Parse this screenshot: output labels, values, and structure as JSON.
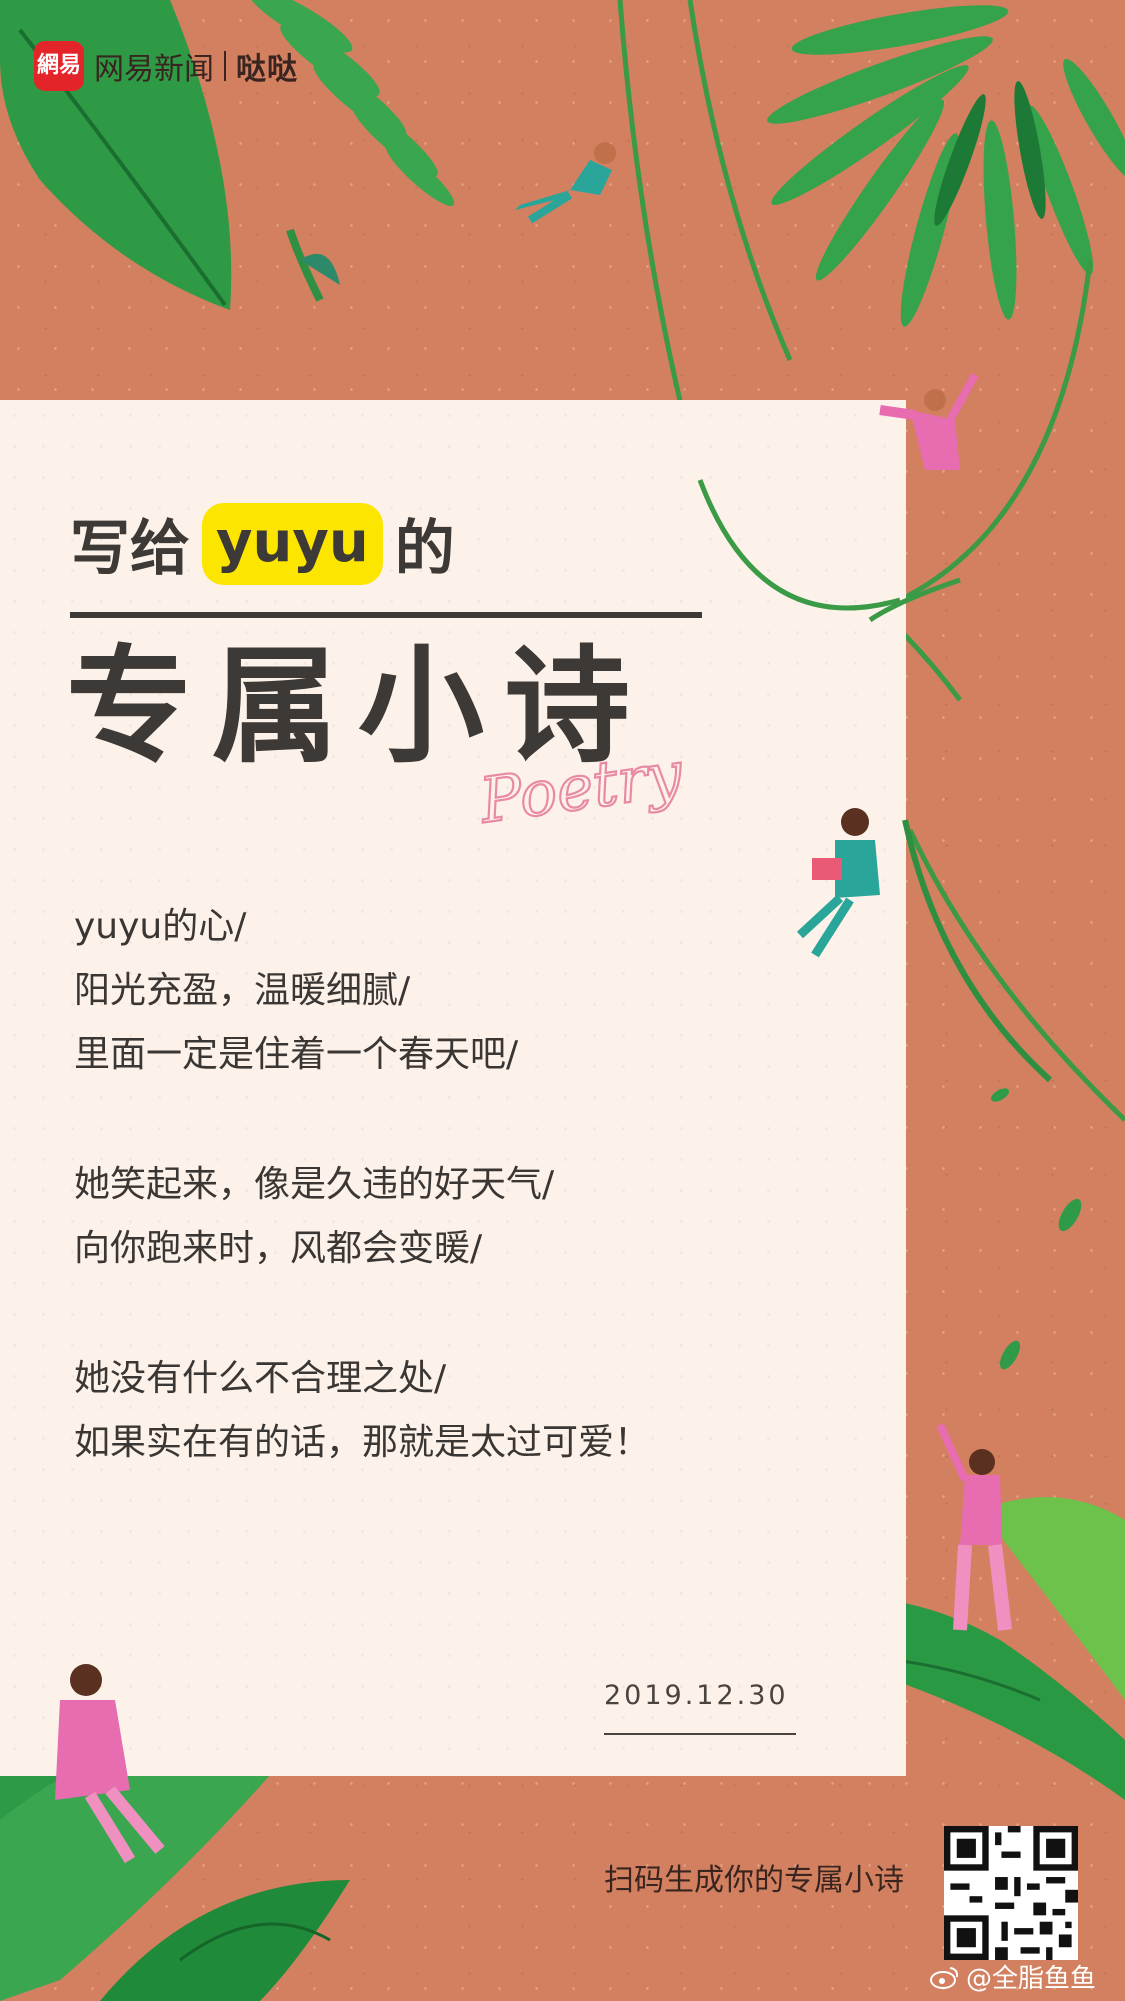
{
  "brand": {
    "logo_mark": "網易",
    "name": "网易新闻",
    "sub": "哒哒"
  },
  "title": {
    "prefix": "写给",
    "name": "yuyu",
    "suffix": "的",
    "main": "专属小诗",
    "script": "Poetry"
  },
  "poem": {
    "lines": [
      "yuyu的心/",
      "阳光充盈，温暖细腻/",
      "里面一定是住着一个春天吧/",
      "",
      "她笑起来，像是久违的好天气/",
      "向你跑来时，风都会变暖/",
      "",
      "她没有什么不合理之处/",
      "如果实在有的话，那就是太过可爱！"
    ]
  },
  "date": "2019.12.30",
  "footer": {
    "scan_text": "扫码生成你的专属小诗",
    "watermark": "@全脂鱼鱼"
  },
  "colors": {
    "background": "#d2805f",
    "paper": "#fcf2ea",
    "highlight": "#fce600",
    "leaf_dark": "#1f8a3a",
    "leaf_light": "#6cc24a",
    "pink": "#e76cb0"
  }
}
